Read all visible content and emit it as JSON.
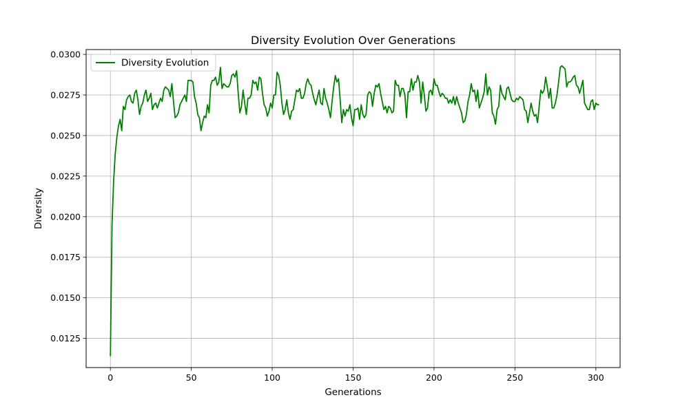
{
  "chart_data": {
    "type": "line",
    "title": "Diversity Evolution Over Generations",
    "xlabel": "Generations",
    "ylabel": "Diversity",
    "xlim": [
      -15,
      315
    ],
    "ylim": [
      0.0107,
      0.0303
    ],
    "xticks": [
      0,
      50,
      100,
      150,
      200,
      250,
      300
    ],
    "yticks": [
      0.0125,
      0.015,
      0.0175,
      0.02,
      0.0225,
      0.025,
      0.0275,
      0.03
    ],
    "ytick_labels": [
      "0.0125",
      "0.0150",
      "0.0175",
      "0.0200",
      "0.0225",
      "0.0250",
      "0.0275",
      "0.0300"
    ],
    "grid": true,
    "legend": "top-left",
    "series": [
      {
        "name": "Diversity Evolution",
        "color": "#008000",
        "x_start": 0,
        "x_step": 1,
        "values": [
          0.0114,
          0.0195,
          0.0222,
          0.0239,
          0.0249,
          0.0256,
          0.026,
          0.0253,
          0.0268,
          0.0266,
          0.0272,
          0.0274,
          0.0275,
          0.0271,
          0.027,
          0.0276,
          0.0278,
          0.0272,
          0.0263,
          0.0268,
          0.027,
          0.0275,
          0.0278,
          0.0271,
          0.0273,
          0.0276,
          0.0266,
          0.0269,
          0.027,
          0.0267,
          0.027,
          0.0273,
          0.0271,
          0.0278,
          0.028,
          0.0279,
          0.0278,
          0.0274,
          0.0282,
          0.0271,
          0.0261,
          0.0262,
          0.0264,
          0.0269,
          0.0271,
          0.0273,
          0.0275,
          0.0271,
          0.0284,
          0.0284,
          0.0284,
          0.0283,
          0.0274,
          0.027,
          0.0263,
          0.0261,
          0.0253,
          0.0258,
          0.0262,
          0.0261,
          0.0269,
          0.0264,
          0.0281,
          0.0284,
          0.0284,
          0.0286,
          0.0281,
          0.0283,
          0.0292,
          0.0279,
          0.0282,
          0.0281,
          0.028,
          0.028,
          0.0282,
          0.0287,
          0.0288,
          0.0286,
          0.029,
          0.0276,
          0.0264,
          0.0268,
          0.0278,
          0.027,
          0.0263,
          0.0273,
          0.0273,
          0.0275,
          0.0284,
          0.0282,
          0.0283,
          0.0278,
          0.0286,
          0.0285,
          0.0276,
          0.0269,
          0.0267,
          0.0262,
          0.0265,
          0.027,
          0.0267,
          0.0275,
          0.0275,
          0.0289,
          0.0287,
          0.0281,
          0.027,
          0.0263,
          0.0266,
          0.0272,
          0.0264,
          0.026,
          0.0265,
          0.0266,
          0.0272,
          0.0278,
          0.0277,
          0.0279,
          0.0273,
          0.0273,
          0.0276,
          0.0282,
          0.0285,
          0.0282,
          0.0281,
          0.0276,
          0.0272,
          0.0269,
          0.0274,
          0.0278,
          0.027,
          0.0269,
          0.0279,
          0.0273,
          0.027,
          0.0266,
          0.0261,
          0.0271,
          0.028,
          0.0287,
          0.0283,
          0.0285,
          0.0272,
          0.0258,
          0.0266,
          0.0262,
          0.0266,
          0.0265,
          0.0269,
          0.0261,
          0.0256,
          0.0266,
          0.0266,
          0.0267,
          0.026,
          0.0269,
          0.0263,
          0.0261,
          0.0263,
          0.0275,
          0.0277,
          0.0276,
          0.0268,
          0.0276,
          0.0281,
          0.028,
          0.0282,
          0.0276,
          0.0271,
          0.0266,
          0.0268,
          0.0264,
          0.0268,
          0.0267,
          0.0264,
          0.0265,
          0.0284,
          0.0281,
          0.0281,
          0.0274,
          0.0279,
          0.0279,
          0.0275,
          0.0261,
          0.0277,
          0.0277,
          0.0285,
          0.0278,
          0.0283,
          0.0283,
          0.0287,
          0.0283,
          0.027,
          0.0283,
          0.0275,
          0.0265,
          0.0267,
          0.0277,
          0.0278,
          0.0275,
          0.0285,
          0.0281,
          0.0281,
          0.0277,
          0.0274,
          0.0276,
          0.0275,
          0.0273,
          0.0273,
          0.027,
          0.0272,
          0.027,
          0.0274,
          0.0269,
          0.0274,
          0.027,
          0.0267,
          0.0264,
          0.0258,
          0.0259,
          0.0263,
          0.0271,
          0.0275,
          0.0282,
          0.0277,
          0.0278,
          0.0271,
          0.0278,
          0.0267,
          0.027,
          0.0273,
          0.0277,
          0.0288,
          0.0275,
          0.028,
          0.0278,
          0.0264,
          0.0262,
          0.0257,
          0.0266,
          0.0268,
          0.0281,
          0.0276,
          0.0274,
          0.0272,
          0.0279,
          0.028,
          0.0276,
          0.0272,
          0.0271,
          0.0271,
          0.0273,
          0.0272,
          0.0274,
          0.0273,
          0.0272,
          0.0266,
          0.0265,
          0.0258,
          0.0264,
          0.027,
          0.0265,
          0.0262,
          0.0263,
          0.0258,
          0.0268,
          0.0278,
          0.0276,
          0.0278,
          0.0286,
          0.028,
          0.0273,
          0.0279,
          0.0267,
          0.0267,
          0.027,
          0.0275,
          0.0283,
          0.0292,
          0.0293,
          0.0292,
          0.0291,
          0.028,
          0.0283,
          0.0283,
          0.0284,
          0.0286,
          0.0287,
          0.0281,
          0.028,
          0.0276,
          0.028,
          0.0284,
          0.027,
          0.0268,
          0.0266,
          0.0266,
          0.0271,
          0.0272,
          0.0266,
          0.027,
          0.0269,
          0.0269
        ]
      }
    ]
  }
}
